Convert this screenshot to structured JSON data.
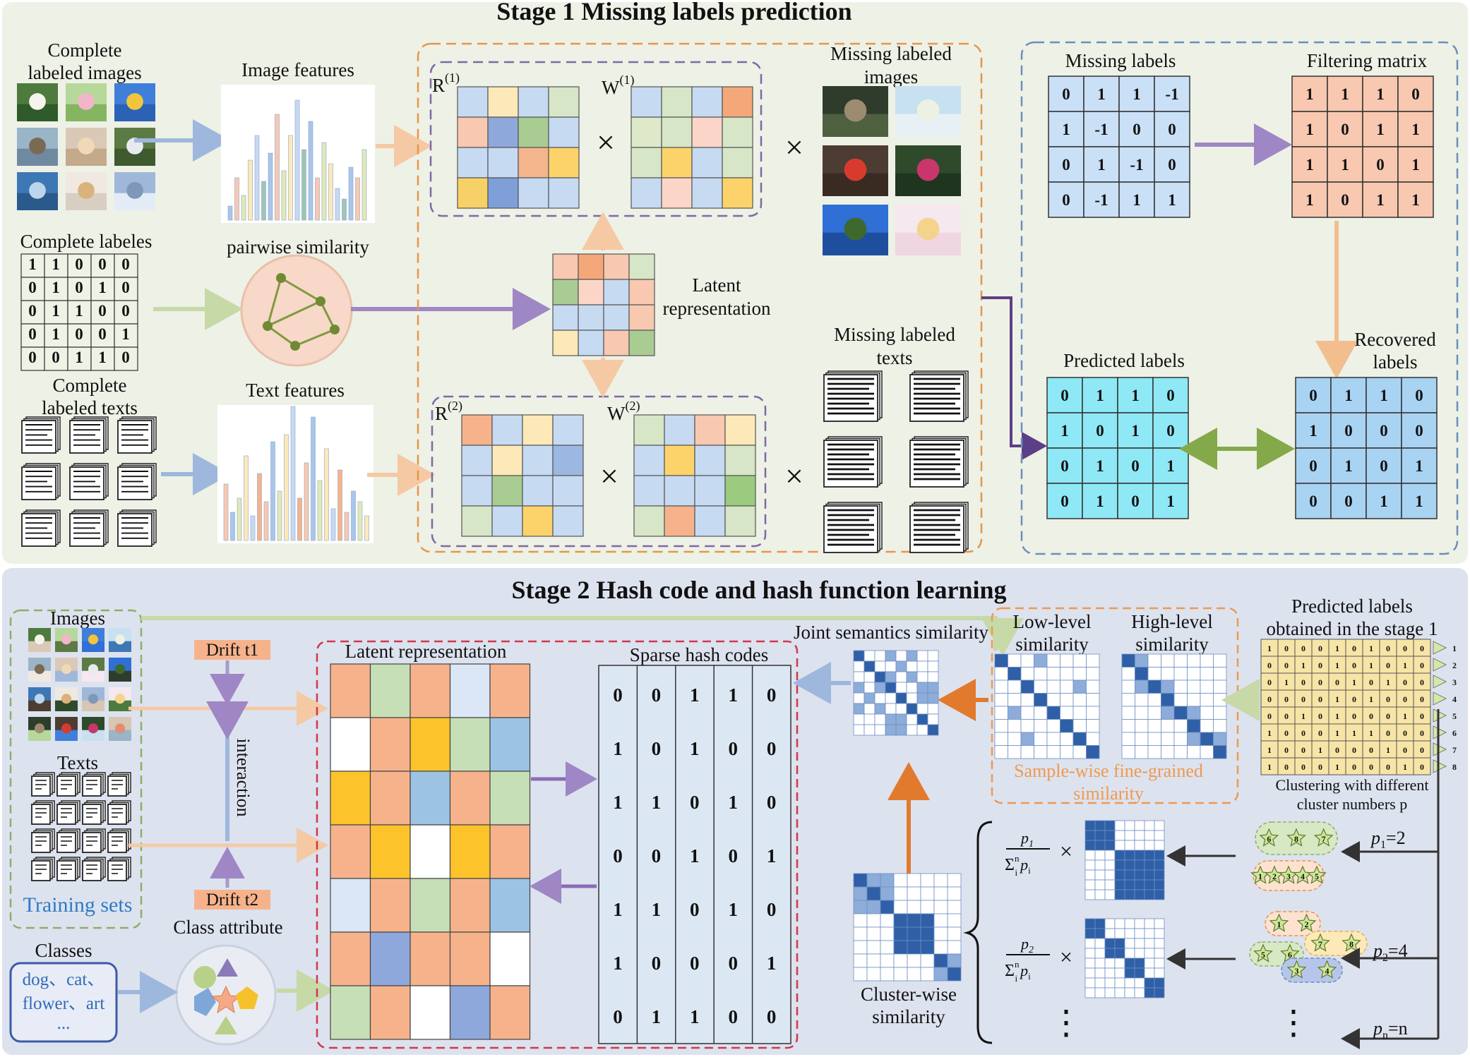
{
  "stage1": {
    "title": "Stage 1   Missing labels prediction",
    "complete_labeled_images": [
      "Complete",
      "labeled  images"
    ],
    "image_features": "Image features",
    "complete_labels": "Complete labeles",
    "complete_labels_matrix": [
      [
        1,
        1,
        0,
        0,
        0
      ],
      [
        0,
        1,
        0,
        1,
        0
      ],
      [
        0,
        1,
        1,
        0,
        0
      ],
      [
        0,
        1,
        0,
        0,
        1
      ],
      [
        0,
        0,
        1,
        1,
        0
      ]
    ],
    "pairwise_similarity": "pairwise similarity",
    "complete_labeled_texts": [
      "Complete",
      "labeled texts"
    ],
    "text_features": "Text features",
    "r1": "R",
    "r1_sup": "(1)",
    "w1": "W",
    "w1_sup": "(1)",
    "r2": "R",
    "r2_sup": "(2)",
    "w2": "W",
    "w2_sup": "(2)",
    "times": "×",
    "latent_representation": [
      "Latent",
      "representation"
    ],
    "missing_labeled_images": [
      "Missing labeled",
      "images"
    ],
    "missing_labeled_texts": [
      "Missing labeled",
      "texts"
    ],
    "missing_labels": "Missing labels",
    "missing_labels_matrix": [
      [
        "0",
        "1",
        "1",
        "-1"
      ],
      [
        "1",
        "-1",
        "0",
        "0"
      ],
      [
        "0",
        "1",
        "-1",
        "0"
      ],
      [
        "0",
        "-1",
        "1",
        "1"
      ]
    ],
    "filtering_matrix": "Filtering matrix",
    "filtering_matrix_values": [
      [
        "1",
        "1",
        "1",
        "0"
      ],
      [
        "1",
        "0",
        "1",
        "1"
      ],
      [
        "1",
        "1",
        "0",
        "1"
      ],
      [
        "1",
        "0",
        "1",
        "1"
      ]
    ],
    "predicted_labels": "Predicted labels",
    "predicted_labels_matrix": [
      [
        "0",
        "1",
        "1",
        "0"
      ],
      [
        "1",
        "0",
        "1",
        "0"
      ],
      [
        "0",
        "1",
        "0",
        "1"
      ],
      [
        "0",
        "1",
        "0",
        "1"
      ]
    ],
    "recovered_labels": [
      "Recovered",
      "labels"
    ],
    "recovered_labels_matrix": [
      [
        "0",
        "1",
        "1",
        "0"
      ],
      [
        "1",
        "0",
        "0",
        "0"
      ],
      [
        "0",
        "1",
        "0",
        "1"
      ],
      [
        "0",
        "0",
        "1",
        "1"
      ]
    ]
  },
  "stage2": {
    "title": "Stage 2   Hash code and hash function learning",
    "images": "Images",
    "texts": "Texts",
    "training_sets": "Training sets",
    "drift_t1": "Drift  t1",
    "drift_t2": "Drift  t2",
    "interaction": "interaction",
    "class_attribute": "Class attribute",
    "classes": "Classes",
    "classes_list": [
      "dog、cat、",
      "flower、art",
      "..."
    ],
    "latent_representation": "Latent representation",
    "sparse_hash_codes": "Sparse hash codes",
    "hash_codes": [
      [
        "0",
        "0",
        "1",
        "1",
        "0"
      ],
      [
        "1",
        "0",
        "1",
        "0",
        "0"
      ],
      [
        "1",
        "1",
        "0",
        "1",
        "0"
      ],
      [
        "0",
        "0",
        "1",
        "0",
        "1"
      ],
      [
        "1",
        "1",
        "0",
        "1",
        "0"
      ],
      [
        "1",
        "0",
        "0",
        "0",
        "1"
      ],
      [
        "0",
        "1",
        "1",
        "0",
        "0"
      ]
    ],
    "joint_semantics_similarity": "Joint semantics similarity",
    "low_level_similarity": [
      "Low-level",
      "similarity"
    ],
    "high_level_similarity": [
      "High-level",
      "similarity"
    ],
    "sample_wise": [
      "Sample-wise fine-grained",
      "similarity"
    ],
    "predicted_labels_stage1": [
      "Predicted labels",
      "obtained in the stage 1"
    ],
    "clustering_caption": [
      "Clustering with different",
      "cluster numbers p"
    ],
    "predicted_matrix": [
      [
        "1",
        "0",
        "0",
        "0",
        "1",
        "0",
        "1",
        "0",
        "0",
        "0"
      ],
      [
        "0",
        "0",
        "1",
        "0",
        "1",
        "0",
        "1",
        "0",
        "1",
        "0"
      ],
      [
        "0",
        "1",
        "0",
        "0",
        "0",
        "1",
        "0",
        "1",
        "0",
        "0"
      ],
      [
        "0",
        "0",
        "0",
        "0",
        "1",
        "0",
        "1",
        "0",
        "0",
        "0"
      ],
      [
        "0",
        "0",
        "1",
        "0",
        "1",
        "0",
        "0",
        "0",
        "1",
        "0"
      ],
      [
        "1",
        "0",
        "0",
        "0",
        "1",
        "1",
        "1",
        "0",
        "0",
        "0"
      ],
      [
        "1",
        "0",
        "0",
        "1",
        "0",
        "0",
        "0",
        "1",
        "0",
        "0"
      ],
      [
        "1",
        "0",
        "0",
        "0",
        "1",
        "0",
        "0",
        "0",
        "1",
        "0"
      ]
    ],
    "row_tags": [
      "1",
      "2",
      "3",
      "4",
      "5",
      "6",
      "7",
      "8"
    ],
    "cluster_wise_similarity": [
      "Cluster-wise",
      "similarity"
    ],
    "p1": "p",
    "p1_sub": "1",
    "p1_val": "=2",
    "p2": "p",
    "p2_sub": "2",
    "p2_val": "=4",
    "pn": "p",
    "pn_sub": "n",
    "pn_val": "=n",
    "frac1_num": "p",
    "frac1_num_sub": "1",
    "frac2_num": "p",
    "frac2_num_sub": "2",
    "frac_den": "Σ",
    "frac_den_sup": "n",
    "frac_den_sub": "i",
    "frac_den_p": "p",
    "frac_den_p_sub": "i",
    "times": "×",
    "vdots": "⋮",
    "cluster_stars_p1": [
      [
        "6",
        "8",
        "7"
      ],
      [
        "1",
        "2",
        "3",
        "4",
        "5"
      ]
    ],
    "cluster_stars_p2": [
      [
        "1",
        "2"
      ],
      [
        "5",
        "6"
      ],
      [
        "7",
        "8"
      ],
      [
        "3",
        "4"
      ]
    ]
  },
  "colors": {
    "stage1_bg": "#eef1e6",
    "stage2_bg": "#dde2ef",
    "orange_dash": "#e8954a",
    "blue_dash": "#6b8fb8",
    "purple_dash": "#7c6aa5",
    "red_dash": "#d0394a",
    "green_dash": "#8fae66",
    "arrow_blue": "#9db8dc",
    "arrow_orange": "#f5c9a3",
    "arrow_green": "#c7d9a7",
    "arrow_purple": "#9e87c4",
    "dark_blue": "#2f5fa6",
    "mid_blue": "#8eacd9",
    "cyan": "#8fe8f5",
    "light_blue": "#c9e0f7",
    "salmon": "#f8c8b0",
    "hash_bg": "#dbe8f4",
    "accent_text_blue": "#2e7bc4",
    "accent_text_orange": "#ee9a4e"
  }
}
